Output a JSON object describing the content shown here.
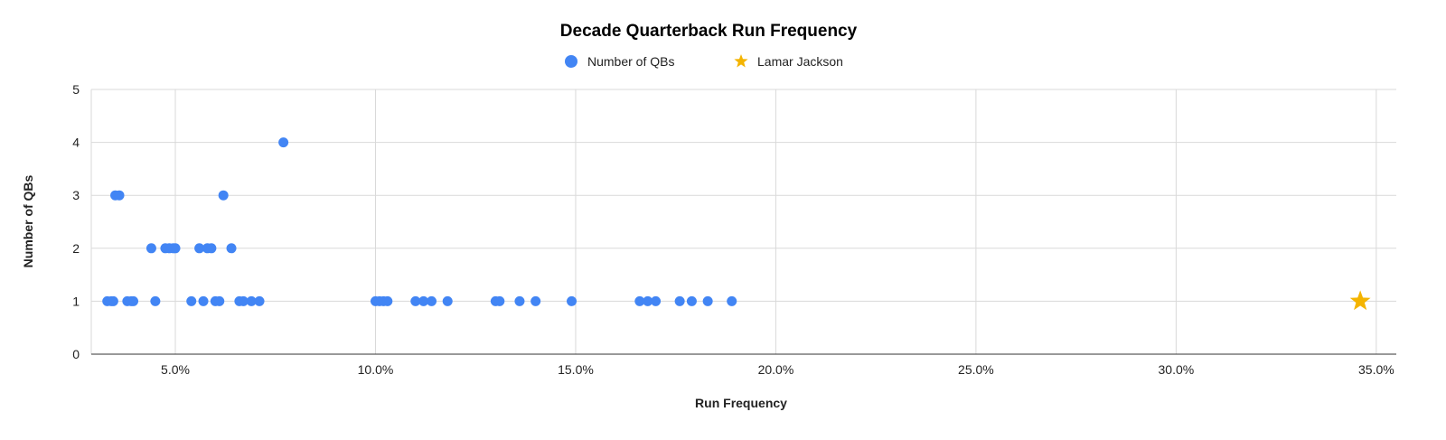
{
  "chart_data": {
    "type": "scatter",
    "title": "Decade Quarterback Run Frequency",
    "xlabel": "Run Frequency",
    "ylabel": "Number of QBs",
    "xlim": [
      0.029,
      0.355
    ],
    "ylim": [
      0,
      5
    ],
    "x_ticks": [
      0.05,
      0.1,
      0.15,
      0.2,
      0.25,
      0.3,
      0.35
    ],
    "x_tick_labels": [
      "5.0%",
      "10.0%",
      "15.0%",
      "20.0%",
      "25.0%",
      "30.0%",
      "35.0%"
    ],
    "y_ticks": [
      0,
      1,
      2,
      3,
      4,
      5
    ],
    "y_tick_labels": [
      "0",
      "1",
      "2",
      "3",
      "4",
      "5"
    ],
    "grid": true,
    "legend_position": "top",
    "series": [
      {
        "name": "Number of QBs",
        "color": "#4285f4",
        "marker": "circle",
        "points": [
          [
            0.033,
            1
          ],
          [
            0.034,
            1
          ],
          [
            0.0345,
            1
          ],
          [
            0.038,
            1
          ],
          [
            0.039,
            1
          ],
          [
            0.0395,
            1
          ],
          [
            0.035,
            3
          ],
          [
            0.036,
            3
          ],
          [
            0.044,
            2
          ],
          [
            0.0475,
            2
          ],
          [
            0.0485,
            2
          ],
          [
            0.0495,
            2
          ],
          [
            0.05,
            2
          ],
          [
            0.045,
            1
          ],
          [
            0.054,
            1
          ],
          [
            0.057,
            1
          ],
          [
            0.056,
            2
          ],
          [
            0.058,
            2
          ],
          [
            0.059,
            2
          ],
          [
            0.06,
            1
          ],
          [
            0.061,
            1
          ],
          [
            0.062,
            3
          ],
          [
            0.064,
            2
          ],
          [
            0.066,
            1
          ],
          [
            0.067,
            1
          ],
          [
            0.069,
            1
          ],
          [
            0.071,
            1
          ],
          [
            0.077,
            4
          ],
          [
            0.1,
            1
          ],
          [
            0.101,
            1
          ],
          [
            0.102,
            1
          ],
          [
            0.103,
            1
          ],
          [
            0.11,
            1
          ],
          [
            0.112,
            1
          ],
          [
            0.114,
            1
          ],
          [
            0.118,
            1
          ],
          [
            0.13,
            1
          ],
          [
            0.131,
            1
          ],
          [
            0.136,
            1
          ],
          [
            0.14,
            1
          ],
          [
            0.149,
            1
          ],
          [
            0.166,
            1
          ],
          [
            0.168,
            1
          ],
          [
            0.17,
            1
          ],
          [
            0.176,
            1
          ],
          [
            0.179,
            1
          ],
          [
            0.183,
            1
          ],
          [
            0.189,
            1
          ]
        ]
      },
      {
        "name": "Lamar Jackson",
        "color": "#f4b400",
        "marker": "star",
        "points": [
          [
            0.346,
            1
          ]
        ]
      }
    ]
  }
}
